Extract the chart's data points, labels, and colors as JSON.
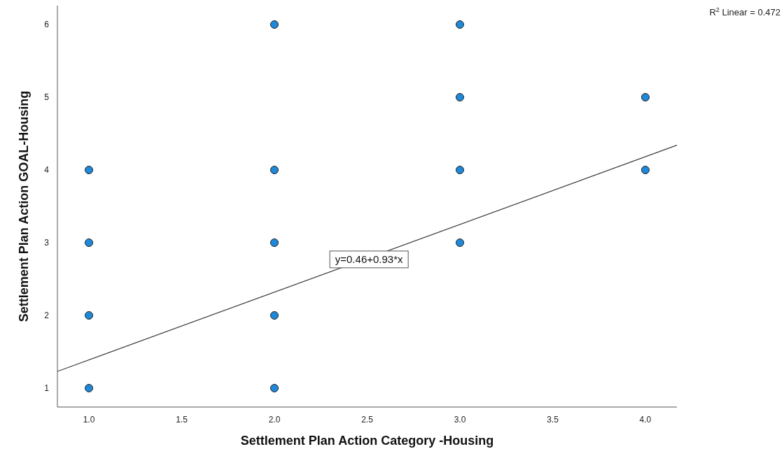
{
  "chart_data": {
    "type": "scatter",
    "xlabel": "Settlement Plan Action Category -Housing",
    "ylabel": "Settlement Plan Action GOAL-Housing",
    "xlim": [
      0.83,
      4.17
    ],
    "ylim": [
      0.74,
      6.26
    ],
    "xticks": [
      {
        "value": 1,
        "label": "1.0"
      },
      1.5,
      {
        "value": 2,
        "label": "2.0"
      },
      2.5,
      {
        "value": 3,
        "label": "3.0"
      },
      3.5,
      {
        "value": 4,
        "label": "4.0"
      }
    ],
    "yticks": [
      1,
      2,
      3,
      4,
      5,
      6
    ],
    "grid": false,
    "marker": "circle",
    "series": [
      {
        "color": "#1f88d8",
        "x": [
          1,
          1,
          1,
          1,
          2,
          2,
          2,
          2,
          2,
          3,
          3,
          3,
          3,
          4,
          4
        ],
        "values": [
          1,
          2,
          3,
          4,
          1,
          2,
          3,
          4,
          6,
          3,
          4,
          5,
          6,
          4,
          5
        ]
      },
      {
        "type": "line",
        "color": "#333333",
        "x": [
          0.83,
          4.17
        ],
        "values": [
          1.23,
          4.34
        ],
        "marker": "none"
      }
    ],
    "annotations": [
      "R$^{2}$ Linear = 0.472",
      {
        "text": "y=0.46+0.93*x",
        "x": 2.51,
        "y": 2.77
      }
    ]
  }
}
